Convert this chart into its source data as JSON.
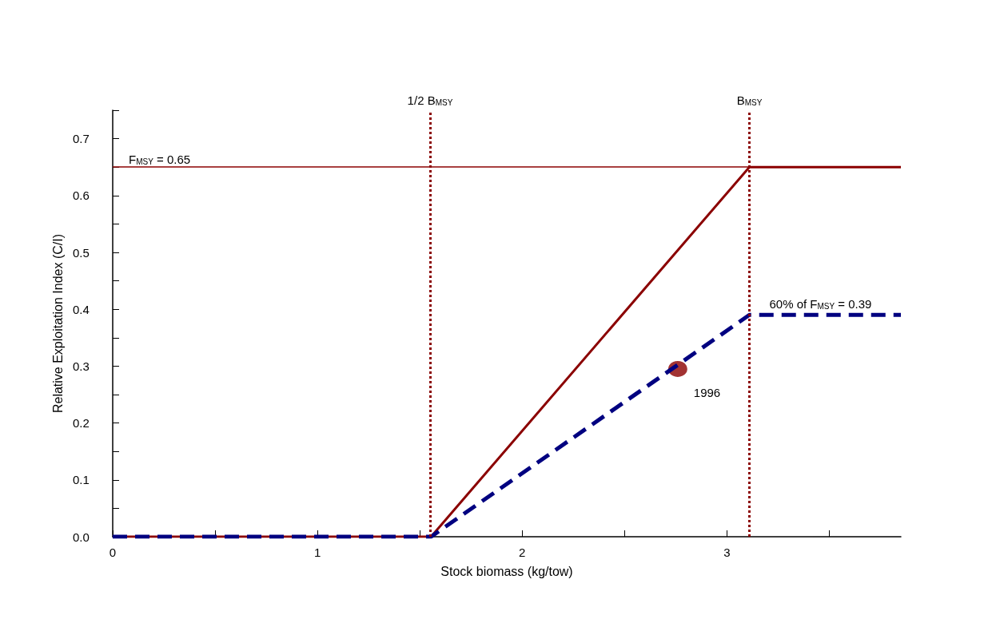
{
  "chart_data": {
    "type": "line",
    "xlabel": "Stock biomass (kg/tow)",
    "ylabel": "Relative Exploitation Index (C/I)",
    "xlim": [
      0,
      3.85
    ],
    "ylim": [
      0,
      0.75
    ],
    "xticks": [
      0,
      {
        "value": 0.5,
        "label": null
      },
      1,
      {
        "value": 1.5,
        "label": null
      },
      2,
      {
        "value": 2.5,
        "label": null
      },
      3,
      {
        "value": 3.5,
        "label": null
      }
    ],
    "yticks": [
      {
        "value": 0,
        "label": "0.0"
      },
      {
        "value": 0.05,
        "label": null
      },
      0.1,
      {
        "value": 0.15,
        "label": null
      },
      0.2,
      {
        "value": 0.25,
        "label": null
      },
      0.3,
      {
        "value": 0.35,
        "label": null
      },
      0.4,
      {
        "value": 0.45,
        "label": null
      },
      0.5,
      {
        "value": 0.55,
        "label": null
      },
      0.6,
      {
        "value": 0.65,
        "label": null
      },
      0.7,
      {
        "value": 0.75,
        "label": null
      }
    ],
    "grid": false,
    "marker": "none",
    "series": [
      {
        "color": "#8b0000",
        "line_style": "solid",
        "x": [
          0,
          1.555,
          3.11,
          3.85
        ],
        "values": [
          0,
          0,
          0.65,
          0.65
        ]
      },
      {
        "color": "#000080",
        "line_style": "dashed",
        "x": [
          0,
          1.555,
          3.11,
          3.85
        ],
        "values": [
          0,
          0,
          0.39,
          0.39
        ]
      },
      {
        "type": "scatter",
        "color": "#8b0000",
        "marker": "circle",
        "x": [
          2.76
        ],
        "values": [
          0.295
        ]
      }
    ],
    "ref_lines": [
      {
        "axis": "y",
        "value": 0.65,
        "label": "F$_{MSY}$ = 0.65",
        "color": "#8b0000",
        "line_style": "solid"
      },
      {
        "axis": "x",
        "value": 1.555,
        "label": "1/2 B$_{MSY}$",
        "color": "#8b0000",
        "line_style": "dotted"
      },
      {
        "axis": "x",
        "value": 3.11,
        "label": "B$_{MSY}$",
        "color": "#8b0000",
        "line_style": "dotted"
      }
    ],
    "annotations": [
      {
        "text": "60% of F$_{MSY}$ = 0.39",
        "x": 3.11,
        "y": 0.39
      },
      {
        "text": "1996",
        "x": 2.76,
        "y": 0.295
      }
    ]
  }
}
